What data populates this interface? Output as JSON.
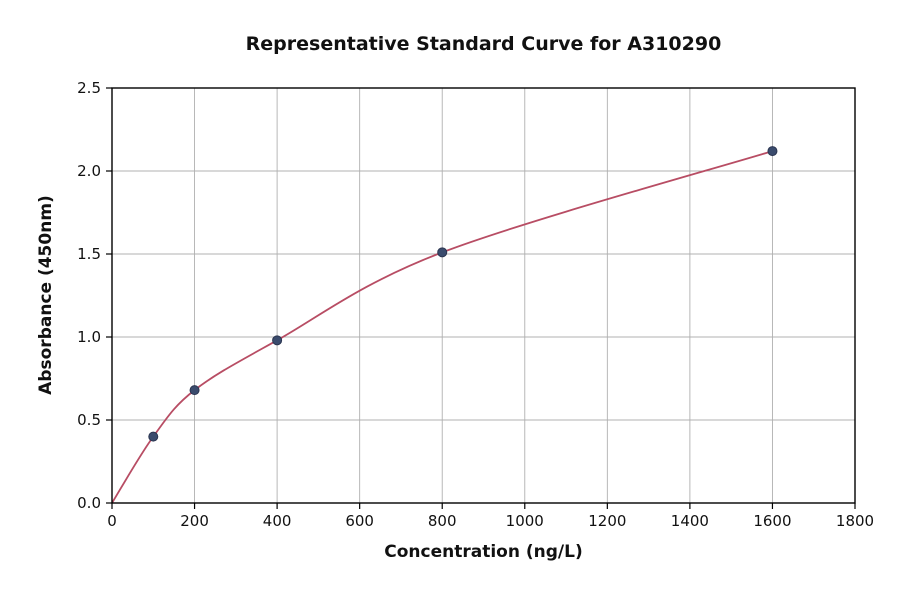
{
  "chart_data": {
    "type": "line",
    "title": "Representative Standard Curve for A310290",
    "xlabel": "Concentration (ng/L)",
    "ylabel": "Absorbance (450nm)",
    "xlim": [
      0,
      1800
    ],
    "ylim": [
      0,
      2.5
    ],
    "xticks": [
      0,
      200,
      400,
      600,
      800,
      1000,
      1200,
      1400,
      1600,
      1800
    ],
    "xtick_labels": [
      "0",
      "200",
      "400",
      "600",
      "800",
      "1000",
      "1200",
      "1400",
      "1600",
      "1800"
    ],
    "yticks": [
      0,
      0.5,
      1.0,
      1.5,
      2.0,
      2.5
    ],
    "ytick_labels": [
      "0.0",
      "0.5",
      "1.0",
      "1.5",
      "2.0",
      "2.5"
    ],
    "grid": true,
    "legend": false,
    "curve": {
      "x": [
        0,
        100,
        200,
        400,
        800,
        1600
      ],
      "y": [
        0,
        0.4,
        0.68,
        0.98,
        1.51,
        2.12
      ]
    },
    "points": {
      "x": [
        100,
        200,
        400,
        800,
        1600
      ],
      "y": [
        0.4,
        0.68,
        0.98,
        1.51,
        2.12
      ]
    },
    "colors": {
      "curve": "#b84d64",
      "point_fill": "#3a4b6d",
      "point_edge": "#2b3550",
      "grid": "#b0b0b0",
      "axis": "#000000",
      "background": "#ffffff"
    }
  }
}
